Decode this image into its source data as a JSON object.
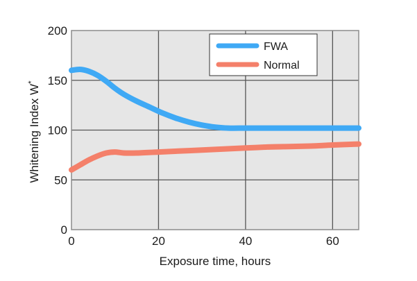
{
  "chart_data": {
    "type": "line",
    "title": "",
    "xlabel": "Exposure time, hours",
    "ylabel": "Whitening Index W",
    "ylabel_superscript": "*",
    "xlim": [
      0,
      66
    ],
    "ylim": [
      0,
      200
    ],
    "x_ticks": [
      0,
      20,
      40,
      60
    ],
    "y_ticks": [
      0,
      50,
      100,
      150,
      200
    ],
    "grid": true,
    "legend_position": "top-right",
    "colors": {
      "plot_background": "#e6e6e6",
      "grid": "#555555",
      "frame": "#8c8c8c"
    },
    "series": [
      {
        "name": "FWA",
        "color": "#3fa9f5",
        "points": [
          [
            0,
            160
          ],
          [
            2,
            161
          ],
          [
            4,
            159
          ],
          [
            6,
            155
          ],
          [
            8,
            149
          ],
          [
            10,
            142
          ],
          [
            12,
            136
          ],
          [
            15,
            129
          ],
          [
            18,
            123
          ],
          [
            21,
            117
          ],
          [
            24,
            112
          ],
          [
            27,
            108
          ],
          [
            30,
            105
          ],
          [
            33,
            103
          ],
          [
            36,
            102
          ],
          [
            40,
            102
          ],
          [
            45,
            102
          ],
          [
            50,
            102
          ],
          [
            55,
            102
          ],
          [
            60,
            102
          ],
          [
            66,
            102
          ]
        ]
      },
      {
        "name": "Normal",
        "color": "#f4806a",
        "points": [
          [
            0,
            60
          ],
          [
            2,
            65
          ],
          [
            4,
            70
          ],
          [
            6,
            74
          ],
          [
            8,
            77
          ],
          [
            10,
            78
          ],
          [
            12,
            77
          ],
          [
            15,
            77
          ],
          [
            20,
            78
          ],
          [
            25,
            79
          ],
          [
            30,
            80
          ],
          [
            35,
            81
          ],
          [
            40,
            82
          ],
          [
            45,
            83
          ],
          [
            50,
            83.5
          ],
          [
            55,
            84
          ],
          [
            60,
            85
          ],
          [
            66,
            86
          ]
        ]
      }
    ]
  }
}
